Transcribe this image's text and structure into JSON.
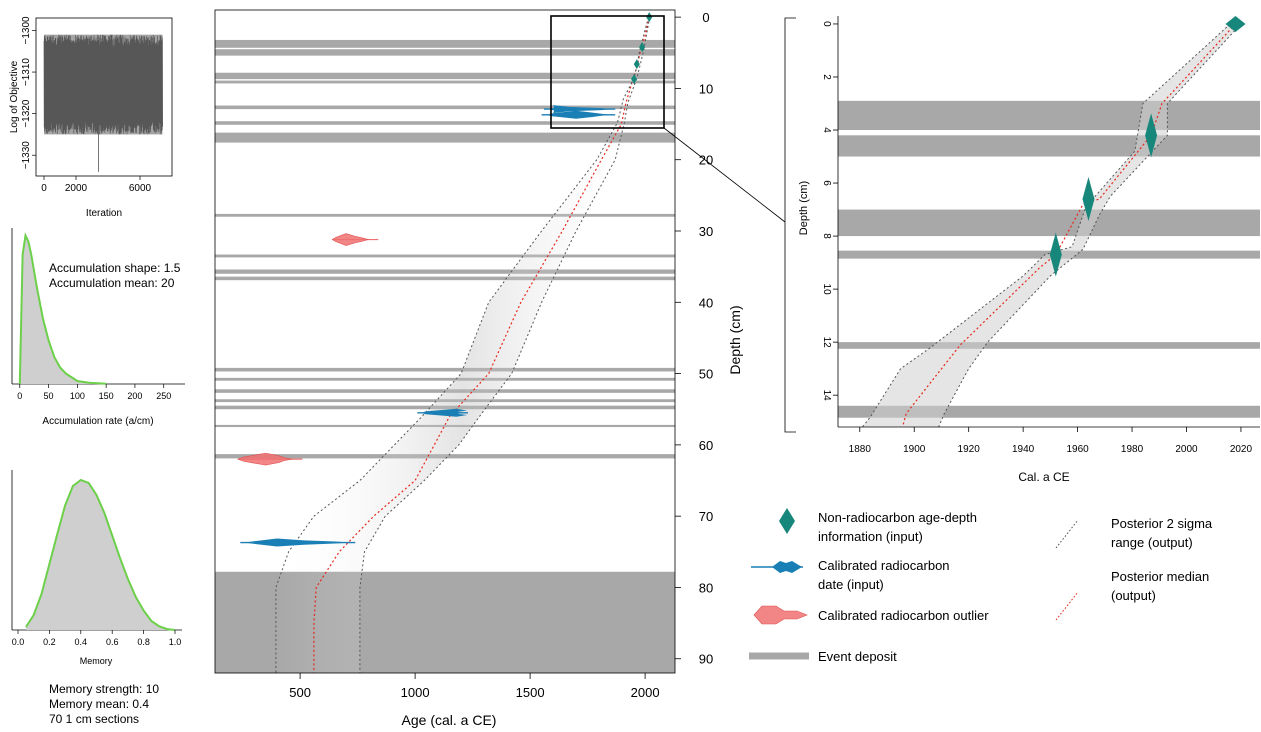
{
  "chart_data": [
    {
      "type": "line",
      "panel": "iteration",
      "xlabel": "Iteration",
      "ylabel": "Log of Objective",
      "xlim": [
        -500,
        8000
      ],
      "ylim": [
        -1335,
        -1297
      ],
      "x_ticks": [
        0,
        2000,
        6000
      ],
      "y_ticks": [
        -1300,
        -1310,
        -1320,
        -1330
      ],
      "series": [
        {
          "band_center": -1315,
          "band_low": -1325,
          "band_high": -1301
        }
      ]
    },
    {
      "type": "area",
      "panel": "accumulation-prior",
      "xlabel": "Accumulation rate (a/cm)",
      "xlim": [
        -10,
        280
      ],
      "x_ticks": [
        0,
        50,
        100,
        150,
        200,
        250
      ],
      "annotations": [
        "Accumulation shape: 1.5",
        "Accumulation mean: 20"
      ],
      "series": [
        {
          "x": [
            0,
            5,
            10,
            15,
            20,
            30,
            40,
            50,
            60,
            70,
            80,
            100,
            120,
            150
          ],
          "y": [
            0.0,
            0.86,
            0.99,
            0.95,
            0.86,
            0.64,
            0.44,
            0.29,
            0.18,
            0.11,
            0.07,
            0.02,
            0.008,
            0.002
          ]
        }
      ]
    },
    {
      "type": "area",
      "panel": "memory-prior",
      "xlabel": "Memory",
      "xlim": [
        0,
        1
      ],
      "x_ticks": [
        0.0,
        0.2,
        0.4,
        0.6,
        0.8,
        1.0
      ],
      "annotations": [
        "Memory strength: 10",
        "Memory mean: 0.4",
        "70 1 cm sections"
      ],
      "series": [
        {
          "x": [
            0.05,
            0.1,
            0.15,
            0.2,
            0.25,
            0.3,
            0.35,
            0.4,
            0.45,
            0.5,
            0.55,
            0.6,
            0.65,
            0.7,
            0.75,
            0.8,
            0.85,
            0.9,
            0.95,
            1.0
          ],
          "y": [
            0.02,
            0.1,
            0.24,
            0.44,
            0.64,
            0.83,
            0.96,
            1.0,
            0.98,
            0.9,
            0.78,
            0.63,
            0.48,
            0.34,
            0.22,
            0.13,
            0.06,
            0.025,
            0.006,
            0.0
          ]
        }
      ]
    },
    {
      "type": "line",
      "panel": "main-age-depth",
      "xlabel": "Age (cal. a CE)",
      "ylabel": "Depth (cm)",
      "xlim": [
        130,
        2130
      ],
      "ylim": [
        92,
        -1
      ],
      "x_ticks": [
        500,
        1000,
        1500,
        2000
      ],
      "y_ticks": [
        0,
        10,
        20,
        30,
        40,
        50,
        60,
        70,
        80,
        90
      ],
      "event_deposits": [
        [
          3.2,
          4.3
        ],
        [
          4.5,
          5.4
        ],
        [
          7.8,
          8.7
        ],
        [
          8.9,
          9.3
        ],
        [
          12.4,
          12.9
        ],
        [
          14.6,
          15.1
        ],
        [
          16.2,
          17.6
        ],
        [
          27.6,
          28.0
        ],
        [
          33.3,
          33.7
        ],
        [
          35.4,
          36.0
        ],
        [
          36.4,
          36.9
        ],
        [
          49.2,
          49.7
        ],
        [
          50.6,
          51.0
        ],
        [
          52.2,
          52.7
        ],
        [
          53.6,
          54.0
        ],
        [
          54.5,
          55.0
        ],
        [
          57.2,
          57.5
        ],
        [
          61.3,
          61.9
        ],
        [
          77.8,
          95
        ]
      ],
      "series": [
        {
          "name": "Posterior median",
          "x": [
            2018,
            1997,
            1985,
            1965,
            1950,
            1917,
            1897,
            1810,
            1640,
            1460,
            1320,
            1150,
            1000,
            820,
            670,
            570,
            560,
            560
          ],
          "y": [
            0,
            3,
            4,
            7,
            8.4,
            12,
            15,
            20,
            30,
            40,
            50,
            56,
            65,
            70,
            75,
            80,
            85,
            92
          ]
        },
        {
          "name": "Posterior 2 sigma range (low)",
          "x": [
            2015,
            1978,
            1953,
            1905,
            1880,
            1790,
            1550,
            1320,
            1200,
            1030,
            760,
            560,
            450,
            395,
            395
          ],
          "y": [
            0,
            4.5,
            8.5,
            11.5,
            14.8,
            20,
            30,
            40,
            50,
            56,
            65,
            70,
            75,
            80,
            92
          ]
        },
        {
          "name": "Posterior 2 sigma range (high)",
          "x": [
            2020,
            1993,
            1965,
            1925,
            1910,
            1870,
            1700,
            1550,
            1420,
            1280,
            1190,
            1040,
            870,
            780,
            760,
            760
          ],
          "y": [
            0,
            4.8,
            8.5,
            12,
            14.8,
            20,
            30,
            40,
            50,
            56,
            60,
            65,
            70,
            75,
            80,
            92
          ]
        }
      ],
      "calibrated_dates": [
        {
          "depth": 12.9,
          "range": [
            1560,
            1870
          ],
          "mode": 1600
        },
        {
          "depth": 13.7,
          "range": [
            1550,
            1870
          ],
          "mode": 1700
        },
        {
          "depth": 55.5,
          "range": [
            1010,
            1230
          ],
          "mode": 1180
        },
        {
          "depth": 73.7,
          "range": [
            240,
            740
          ],
          "mode": 400
        }
      ],
      "outliers": [
        {
          "depth": 31.2,
          "range": [
            640,
            840
          ],
          "mode": 700
        },
        {
          "depth": 62.0,
          "range": [
            230,
            510
          ],
          "mode": 350
        }
      ],
      "non_radiocarbon": [
        {
          "depth": 0,
          "age": 2018
        },
        {
          "depth": 4.2,
          "age": 1987
        },
        {
          "depth": 6.6,
          "age": 1964
        },
        {
          "depth": 8.7,
          "age": 1952
        }
      ]
    },
    {
      "type": "line",
      "panel": "inset-zoom",
      "xlabel": "Cal. a CE",
      "ylabel": "Depth (cm)",
      "xlim": [
        1872,
        2027
      ],
      "ylim": [
        15.2,
        -0.3
      ],
      "x_ticks": [
        1880,
        1900,
        1920,
        1940,
        1960,
        1980,
        2000,
        2020
      ],
      "y_ticks": [
        0,
        2,
        4,
        6,
        8,
        10,
        12,
        14
      ],
      "event_deposits": [
        [
          2.9,
          4.0
        ],
        [
          4.2,
          5.0
        ],
        [
          7.0,
          8.0
        ],
        [
          8.55,
          8.85
        ],
        [
          12.0,
          12.25
        ],
        [
          14.4,
          14.85
        ]
      ],
      "series": [
        {
          "name": "Posterior median",
          "x": [
            2018,
            1991,
            1987,
            1968,
            1962,
            1952,
            1946,
            1917,
            1910,
            1897,
            1896
          ],
          "y": [
            0,
            3,
            4.2,
            6.6,
            6.8,
            8.7,
            9.2,
            12.1,
            13,
            14.7,
            15.1
          ]
        },
        {
          "name": "Posterior 2 sigma range (low)",
          "x": [
            2016,
            1984,
            1981,
            1963,
            1958,
            1948,
            1940,
            1906,
            1895,
            1884,
            1881
          ],
          "y": [
            0,
            3,
            4.8,
            6.9,
            8.4,
            8.7,
            9.5,
            12.2,
            13,
            14.8,
            15.2
          ]
        },
        {
          "name": "Posterior 2 sigma range (high)",
          "x": [
            2020,
            1993,
            1993,
            1972,
            1968,
            1962,
            1950,
            1927,
            1920,
            1911,
            1909
          ],
          "y": [
            0,
            3,
            4.2,
            6.5,
            7.2,
            8.5,
            9.5,
            12.0,
            13,
            14.7,
            15.2
          ]
        }
      ],
      "non_radiocarbon": [
        {
          "depth": 0,
          "age": 2018
        },
        {
          "depth": 4.2,
          "age": 1987
        },
        {
          "depth": 6.6,
          "age": 1964
        },
        {
          "depth": 8.7,
          "age": 1952
        }
      ]
    }
  ],
  "legend": {
    "non_radiocarbon": "Non-radiocarbon age-depth",
    "non_radiocarbon_2": "information (input)",
    "calibrated": "Calibrated radiocarbon",
    "calibrated_2": "date (input)",
    "outlier": "Calibrated radiocarbon outlier",
    "event": "Event deposit",
    "sigma": "Posterior 2 sigma",
    "sigma_2": "range (output)",
    "median": "Posterior median",
    "median_2": "(output)"
  },
  "colors": {
    "event": "#a8a8a8",
    "median": "#e8261b",
    "sigma": "#555555",
    "teal": "#17877b",
    "blue": "#1a7fb5",
    "outlier": "#f07070",
    "prior_fill": "#cfcfcf",
    "prior_line": "#6cd04a"
  }
}
